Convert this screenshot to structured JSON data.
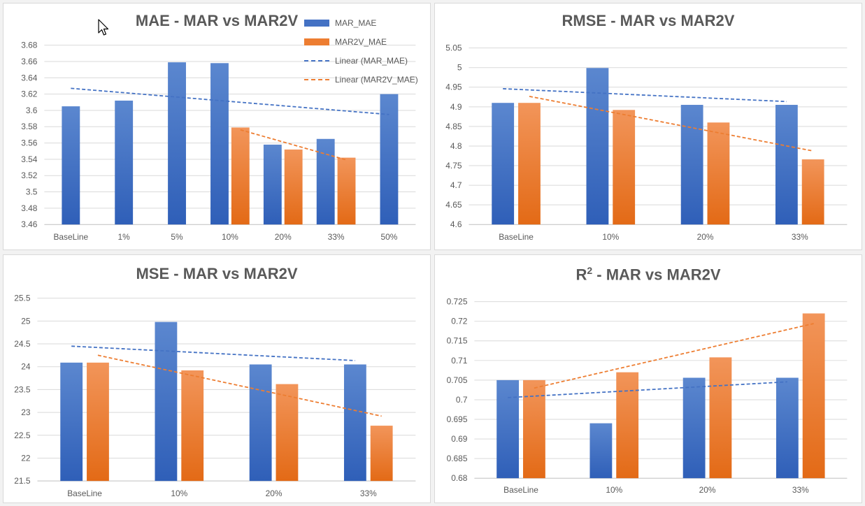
{
  "colors": {
    "mar": "#4472C4",
    "mar_dark": "#2F5FB8",
    "mar2v": "#ED7D31",
    "mar2v_dark": "#E36A16",
    "grid": "#d9d9d9",
    "axis": "#bfbfbf",
    "text": "#595959"
  },
  "legend": {
    "mar": "MAR_MAE",
    "mar2v": "MAR2V_MAE",
    "trend_mar": "Linear (MAR_MAE)",
    "trend_mar2v": "Linear (MAR2V_MAE)"
  },
  "chart_data": [
    {
      "type": "bar",
      "title": "MAE - MAR vs MAR2V",
      "categories": [
        "BaseLine",
        "1%",
        "5%",
        "10%",
        "20%",
        "33%",
        "50%"
      ],
      "series": [
        {
          "name": "MAR_MAE",
          "values": [
            3.605,
            3.612,
            3.659,
            3.658,
            3.558,
            3.565,
            3.62
          ]
        },
        {
          "name": "MAR2V_MAE",
          "values": [
            null,
            null,
            null,
            3.579,
            3.552,
            3.542,
            null
          ]
        }
      ],
      "trendlines": [
        {
          "name": "Linear (MAR_MAE)",
          "series": 0
        },
        {
          "name": "Linear (MAR2V_MAE)",
          "series": 1
        }
      ],
      "ylim": [
        3.46,
        3.68
      ],
      "ystep": 0.02,
      "ydecimals": 2,
      "yticks": [
        "3.46",
        "3.48",
        "3.5",
        "3.52",
        "3.54",
        "3.56",
        "3.58",
        "3.6",
        "3.62",
        "3.64",
        "3.66",
        "3.68"
      ],
      "legend": "top-right",
      "grid": true
    },
    {
      "type": "bar",
      "title": "RMSE - MAR vs MAR2V",
      "categories": [
        "BaseLine",
        "10%",
        "20%",
        "33%"
      ],
      "series": [
        {
          "name": "MAR_MAE",
          "values": [
            4.91,
            4.999,
            4.905,
            4.905
          ]
        },
        {
          "name": "MAR2V_MAE",
          "values": [
            4.91,
            4.892,
            4.86,
            4.766
          ]
        }
      ],
      "trendlines": [
        {
          "name": "Linear (MAR_MAE)",
          "series": 0
        },
        {
          "name": "Linear (MAR2V_MAE)",
          "series": 1
        }
      ],
      "ylim": [
        4.6,
        5.05
      ],
      "ystep": 0.05,
      "yticks": [
        "4.6",
        "4.65",
        "4.7",
        "4.75",
        "4.8",
        "4.85",
        "4.9",
        "4.95",
        "5",
        "5.05"
      ],
      "grid": true
    },
    {
      "type": "bar",
      "title": "MSE - MAR vs MAR2V",
      "categories": [
        "BaseLine",
        "10%",
        "20%",
        "33%"
      ],
      "series": [
        {
          "name": "MAR_MAE",
          "values": [
            24.09,
            24.98,
            24.05,
            24.05
          ]
        },
        {
          "name": "MAR2V_MAE",
          "values": [
            24.09,
            23.92,
            23.62,
            22.71
          ]
        }
      ],
      "trendlines": [
        {
          "name": "Linear (MAR_MAE)",
          "series": 0
        },
        {
          "name": "Linear (MAR2V_MAE)",
          "series": 1
        }
      ],
      "ylim": [
        21.5,
        25.5
      ],
      "ystep": 0.5,
      "yticks": [
        "21.5",
        "22",
        "22.5",
        "23",
        "23.5",
        "24",
        "24.5",
        "25",
        "25.5"
      ],
      "grid": true
    },
    {
      "type": "bar",
      "title": "R",
      "title_sup": "2",
      "title_rest": " - MAR vs MAR2V",
      "categories": [
        "BaseLine",
        "10%",
        "20%",
        "33%"
      ],
      "series": [
        {
          "name": "MAR_MAE",
          "values": [
            0.705,
            0.694,
            0.7056,
            0.7056
          ]
        },
        {
          "name": "MAR2V_MAE",
          "values": [
            0.705,
            0.707,
            0.7108,
            0.722
          ]
        }
      ],
      "trendlines": [
        {
          "name": "Linear (MAR_MAE)",
          "series": 0
        },
        {
          "name": "Linear (MAR2V_MAE)",
          "series": 1
        }
      ],
      "ylim": [
        0.68,
        0.725
      ],
      "ystep": 0.005,
      "yticks": [
        "0.68",
        "0.685",
        "0.69",
        "0.695",
        "0.7",
        "0.705",
        "0.71",
        "0.715",
        "0.72",
        "0.725"
      ],
      "grid": true
    }
  ]
}
